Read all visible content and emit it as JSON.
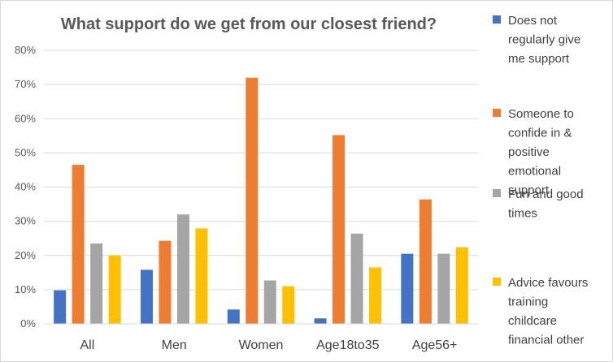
{
  "chart_data": {
    "type": "bar",
    "title": "What support do we get from our closest friend?",
    "xlabel": "",
    "ylabel": "",
    "categories": [
      "All",
      "Men",
      "Women",
      "Age18to35",
      "Age56+"
    ],
    "y_tick_labels": [
      "0%",
      "10%",
      "20%",
      "30%",
      "40%",
      "50%",
      "60%",
      "70%",
      "80%"
    ],
    "ylim": [
      0,
      80
    ],
    "grid": true,
    "legend_position": "right",
    "series": [
      {
        "name": "Does not regularly give me support",
        "color": "#4472C4",
        "values": [
          9.8,
          15.8,
          4.2,
          1.6,
          20.5
        ]
      },
      {
        "name": "Someone to confide in & positive emotional support",
        "color": "#ED7D31",
        "values": [
          46.5,
          24.3,
          72.0,
          55.2,
          36.4
        ]
      },
      {
        "name": "Fun and good times",
        "color": "#A5A5A5",
        "values": [
          23.5,
          32.0,
          12.7,
          26.4,
          20.5
        ]
      },
      {
        "name": "Advice favours training childcare financial other",
        "color": "#FFC000",
        "values": [
          20.0,
          27.9,
          11.0,
          16.5,
          22.4
        ]
      }
    ],
    "legend": [
      {
        "lines": [
          "Does not",
          "regularly give",
          "me support"
        ]
      },
      {
        "lines": [
          "Someone to",
          "confide in &",
          "positive",
          "emotional",
          "support"
        ]
      },
      {
        "lines": [
          "Fun and good",
          "times"
        ]
      },
      {
        "lines": [
          "Advice favours",
          "training",
          "childcare",
          "financial other"
        ]
      }
    ]
  }
}
